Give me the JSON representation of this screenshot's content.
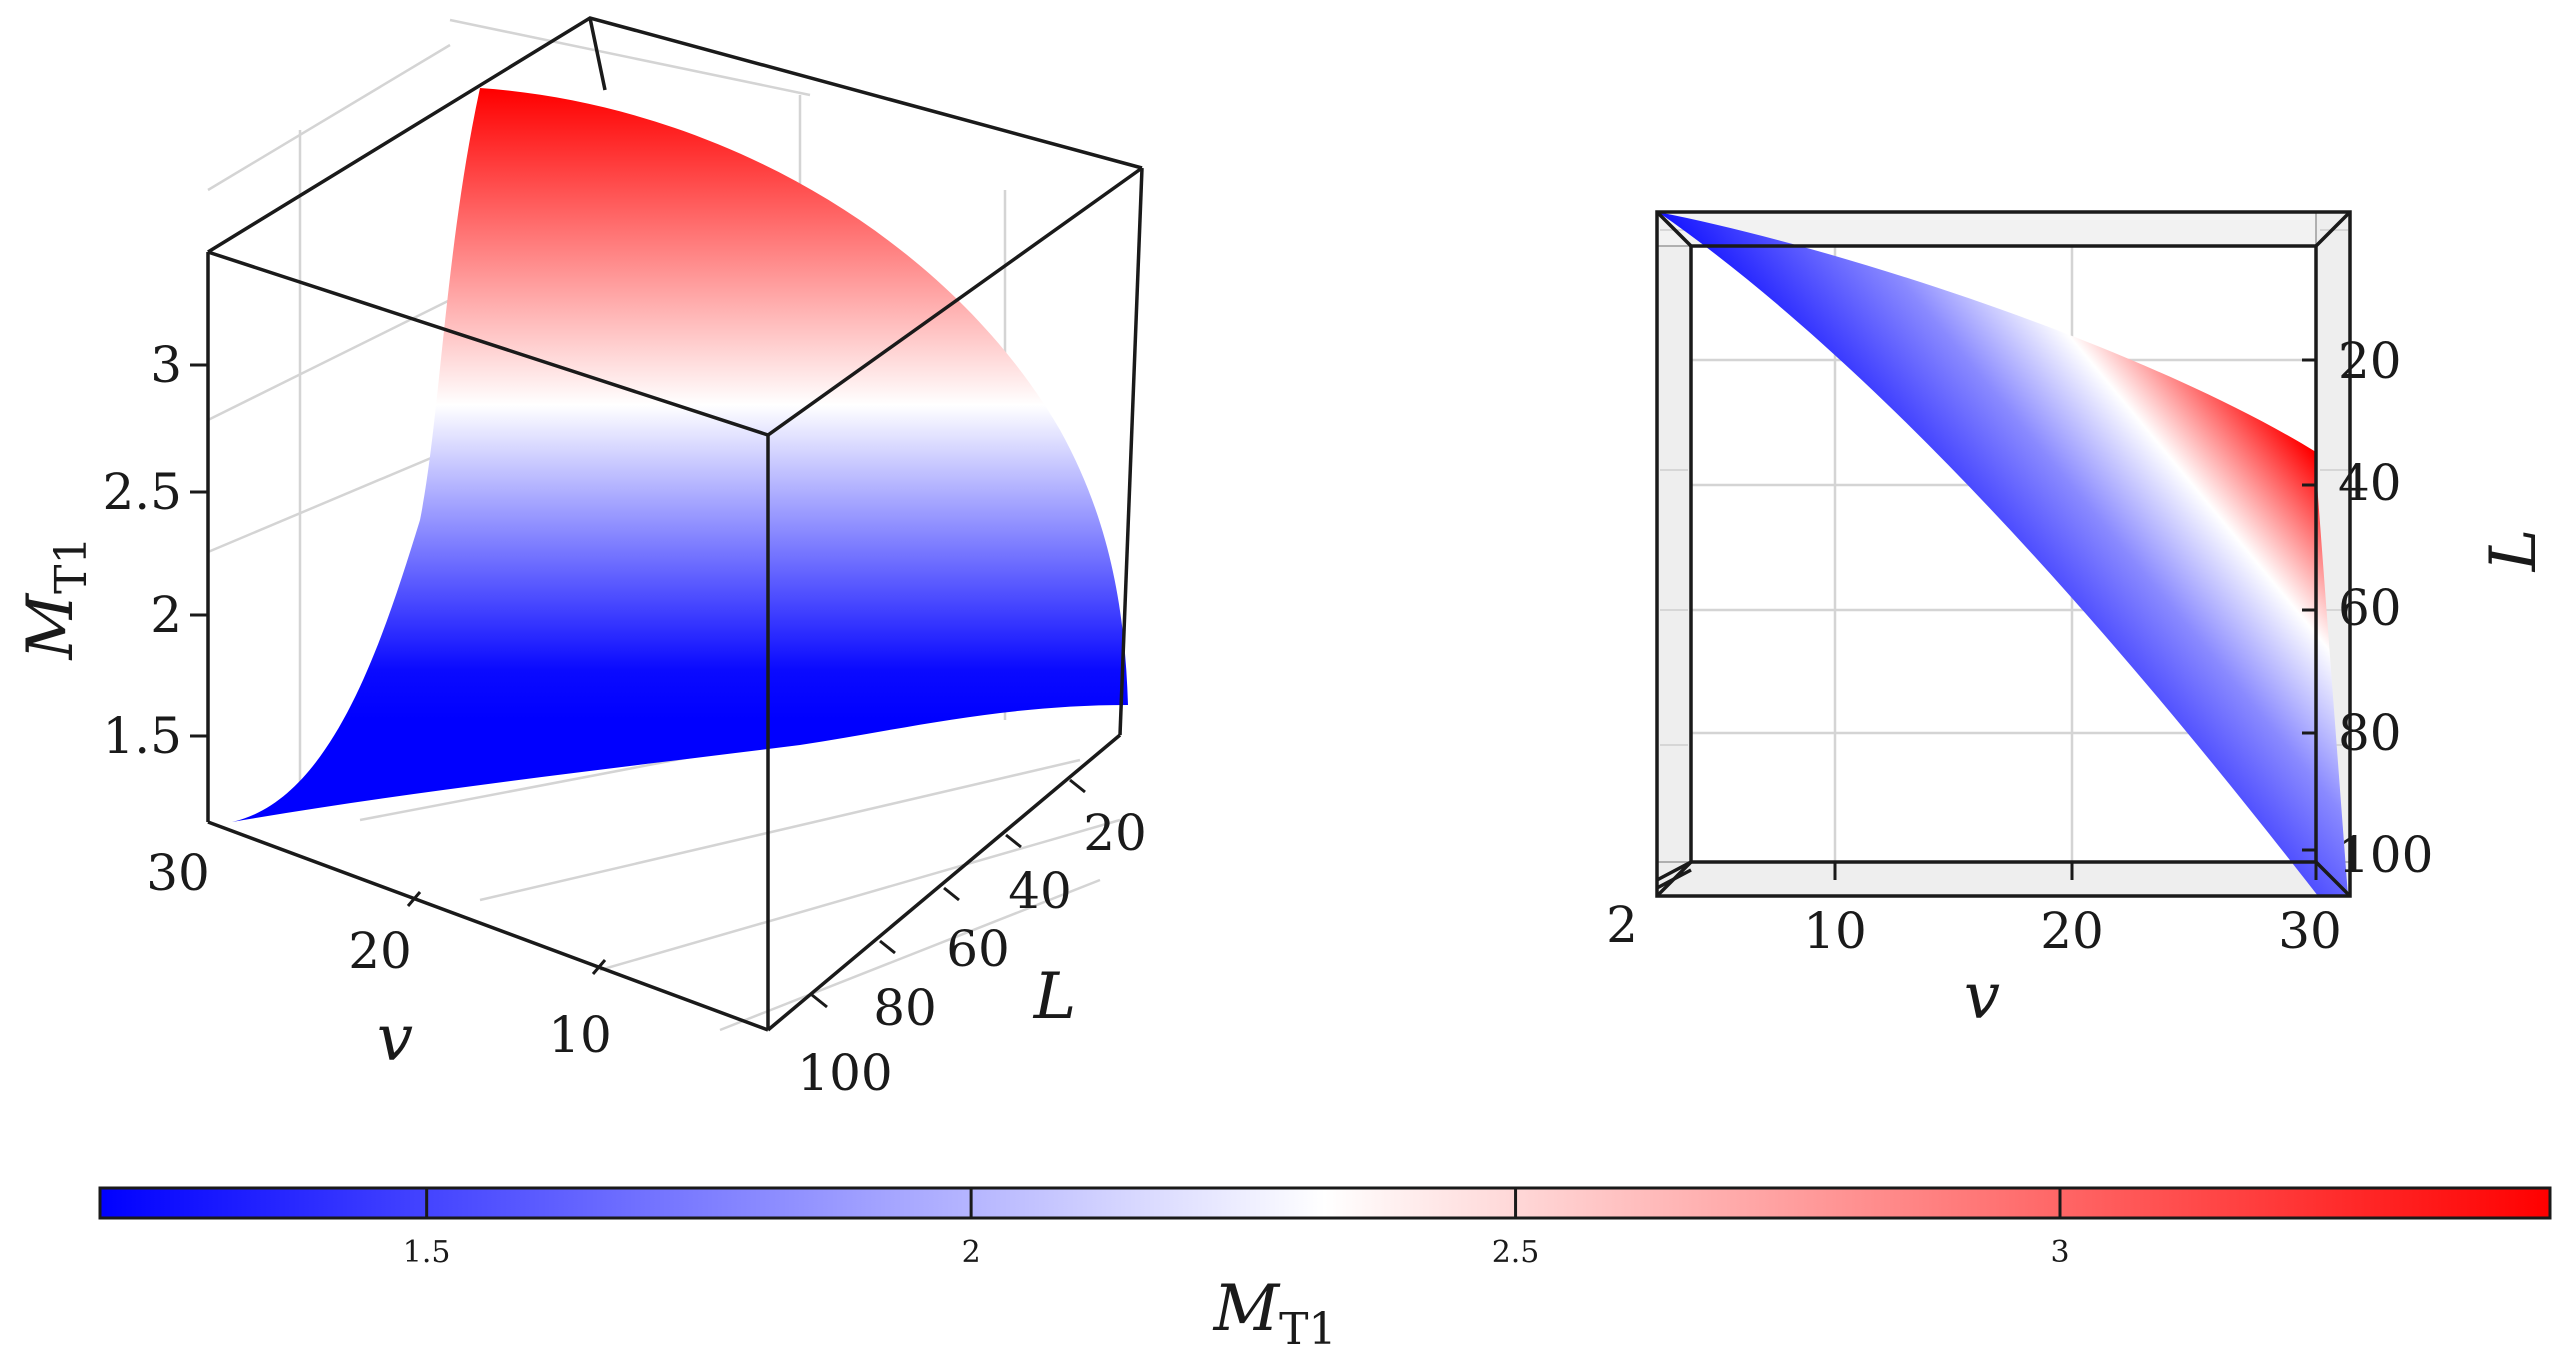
{
  "colormap": {
    "low": "#0000ff",
    "mid": "#ffffff",
    "high": "#ff0000"
  },
  "chart_data": [
    {
      "type": "surface3d",
      "view": "perspective",
      "xlabel": "v",
      "ylabel": "L",
      "zlabel": {
        "base": "M",
        "sub": "T1"
      },
      "xlim": [
        2,
        30
      ],
      "ylim": [
        10,
        100
      ],
      "zlim": [
        1.2,
        3.45
      ],
      "x_ticks": [
        "10",
        "20",
        "30"
      ],
      "y_ticks": [
        "20",
        "40",
        "60",
        "80",
        "100"
      ],
      "z_ticks": [
        "1.5",
        "2",
        "2.5",
        "3"
      ],
      "surface_corners": [
        {
          "v": 2,
          "L": 10,
          "M": 1.2
        },
        {
          "v": 30,
          "L": 10,
          "M": 3.4
        },
        {
          "v": 30,
          "L": 100,
          "M": 1.9
        },
        {
          "v": 2,
          "L": 100,
          "M": 1.2
        }
      ]
    },
    {
      "type": "surface3d",
      "view": "top",
      "xlabel": "v",
      "ylabel": "L",
      "x_ticks": [
        "2",
        "10",
        "20",
        "30"
      ],
      "y_ticks": [
        "20",
        "40",
        "60",
        "80",
        "100"
      ]
    }
  ],
  "colorbar": {
    "label": {
      "base": "M",
      "sub": "T1"
    },
    "min": 1.2,
    "max": 3.45,
    "ticks": [
      {
        "value": 1.5,
        "label": "1.5"
      },
      {
        "value": 2,
        "label": "2"
      },
      {
        "value": 2.5,
        "label": "2.5"
      },
      {
        "value": 3,
        "label": "3"
      }
    ]
  }
}
